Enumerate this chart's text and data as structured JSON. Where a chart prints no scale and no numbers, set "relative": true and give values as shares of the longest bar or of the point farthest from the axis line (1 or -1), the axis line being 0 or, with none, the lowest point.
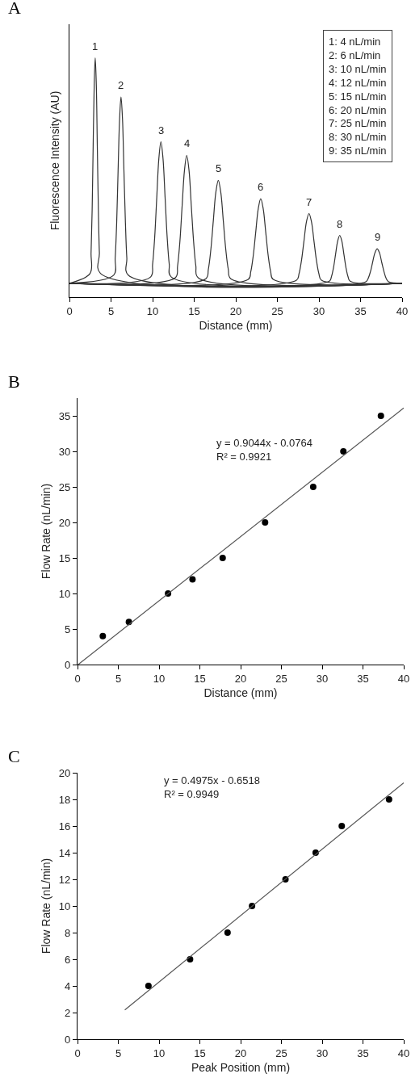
{
  "chart_data": [
    {
      "type": "line",
      "title": "A",
      "xlabel": "Distance (mm)",
      "ylabel": "Fluorescence Intensity (AU)",
      "relative": true,
      "xlim": [
        0,
        40
      ],
      "xticks": [
        0,
        5,
        10,
        15,
        20,
        25,
        30,
        35,
        40
      ],
      "grid": false,
      "marker": "none",
      "line_style": "solid",
      "series": [
        {
          "color": "#333333",
          "x": [
            0,
            2.48,
            2.6,
            2.73,
            2.85,
            2.98,
            3.1,
            3.23,
            3.35,
            3.48,
            3.6,
            3.73,
            40
          ],
          "values": [
            0.058,
            0.099,
            0.185,
            0.364,
            0.63,
            0.889,
            1.0,
            0.889,
            0.63,
            0.364,
            0.185,
            0.099,
            0.058
          ]
        },
        {
          "color": "#333333",
          "x": [
            0,
            5.33,
            5.5,
            5.68,
            5.85,
            6.03,
            6.2,
            6.38,
            6.55,
            6.73,
            6.9,
            7.08,
            40
          ],
          "values": [
            0.058,
            0.092,
            0.163,
            0.311,
            0.53,
            0.744,
            0.836,
            0.744,
            0.53,
            0.311,
            0.163,
            0.092,
            0.058
          ]
        },
        {
          "color": "#333333",
          "x": [
            0,
            9.75,
            10,
            10.25,
            10.5,
            10.75,
            11,
            11.25,
            11.5,
            11.75,
            12,
            12.25,
            40
          ],
          "values": [
            0.058,
            0.084,
            0.138,
            0.25,
            0.417,
            0.579,
            0.649,
            0.579,
            0.417,
            0.25,
            0.138,
            0.084,
            0.058
          ]
        },
        {
          "color": "#333333",
          "x": [
            0,
            12.73,
            13,
            13.28,
            13.55,
            13.83,
            14.1,
            14.38,
            14.65,
            14.93,
            15.2,
            15.48,
            40
          ],
          "values": [
            0.058,
            0.081,
            0.13,
            0.232,
            0.382,
            0.529,
            0.592,
            0.529,
            0.382,
            0.232,
            0.13,
            0.081,
            0.058
          ]
        },
        {
          "color": "#333333",
          "x": [
            0,
            16.4,
            16.7,
            17,
            17.3,
            17.6,
            17.9,
            18.2,
            18.5,
            18.8,
            19.1,
            19.4,
            40
          ],
          "values": [
            0.058,
            0.077,
            0.116,
            0.198,
            0.319,
            0.437,
            0.488,
            0.437,
            0.319,
            0.198,
            0.116,
            0.077,
            0.058
          ]
        },
        {
          "color": "#333333",
          "x": [
            0,
            21.5,
            21.8,
            22.1,
            22.4,
            22.7,
            23,
            23.3,
            23.6,
            23.9,
            24.2,
            24.5,
            40
          ],
          "values": [
            0.058,
            0.074,
            0.106,
            0.173,
            0.272,
            0.369,
            0.411,
            0.369,
            0.272,
            0.173,
            0.106,
            0.074,
            0.058
          ]
        },
        {
          "color": "#333333",
          "x": [
            0,
            27.3,
            27.6,
            27.9,
            28.2,
            28.5,
            28.8,
            29.1,
            29.4,
            29.7,
            30,
            30.3,
            40
          ],
          "values": [
            0.058,
            0.071,
            0.097,
            0.153,
            0.235,
            0.315,
            0.349,
            0.315,
            0.235,
            0.153,
            0.097,
            0.071,
            0.058
          ]
        },
        {
          "color": "#333333",
          "x": [
            0,
            31.25,
            31.5,
            31.75,
            32,
            32.25,
            32.5,
            32.75,
            33,
            33.25,
            33.5,
            33.75,
            40
          ],
          "values": [
            0.058,
            0.067,
            0.085,
            0.123,
            0.179,
            0.234,
            0.258,
            0.234,
            0.179,
            0.123,
            0.085,
            0.067,
            0.058
          ]
        },
        {
          "color": "#333333",
          "x": [
            0,
            35.63,
            35.9,
            36.18,
            36.45,
            36.73,
            37,
            37.28,
            37.55,
            37.83,
            38.1,
            38.38,
            40
          ],
          "values": [
            0.058,
            0.064,
            0.077,
            0.105,
            0.145,
            0.185,
            0.202,
            0.185,
            0.145,
            0.105,
            0.077,
            0.064,
            0.058
          ]
        }
      ],
      "annotations": [
        {
          "text": "1",
          "x": 3.1,
          "y": 1.0
        },
        {
          "text": "2",
          "x": 6.2,
          "y": 0.836
        },
        {
          "text": "3",
          "x": 11,
          "y": 0.649
        },
        {
          "text": "4",
          "x": 14.1,
          "y": 0.592
        },
        {
          "text": "5",
          "x": 17.9,
          "y": 0.488
        },
        {
          "text": "6",
          "x": 23,
          "y": 0.411
        },
        {
          "text": "7",
          "x": 28.8,
          "y": 0.349
        },
        {
          "text": "8",
          "x": 32.5,
          "y": 0.258
        },
        {
          "text": "9",
          "x": 37,
          "y": 0.202
        },
        "1: 4 nL/min",
        "2: 6 nL/min",
        "3: 10 nL/min",
        "4: 12 nL/min",
        "5: 15 nL/min",
        "6: 20 nL/min",
        "7: 25 nL/min",
        "8: 30 nL/min",
        "9: 35 nL/min"
      ]
    },
    {
      "type": "scatter",
      "title": "B",
      "xlabel": "Distance (mm)",
      "ylabel": "Flow Rate (nL/min)",
      "xlim": [
        0,
        40
      ],
      "xticks": [
        0,
        5,
        10,
        15,
        20,
        25,
        30,
        35,
        40
      ],
      "ylim": [
        0,
        37.5
      ],
      "yticks": [
        0,
        5,
        10,
        15,
        20,
        25,
        30,
        35
      ],
      "grid": false,
      "series": [
        {
          "type": "scatter",
          "marker": "circle",
          "color": "#000000",
          "x": [
            3.1,
            6.3,
            11.1,
            14.1,
            17.8,
            23.0,
            28.9,
            32.6,
            37.2
          ],
          "values": [
            4,
            6,
            10,
            12,
            15,
            20,
            25,
            30,
            35
          ]
        },
        {
          "type": "line",
          "marker": "none",
          "line_style": "solid",
          "color": "#555555",
          "x": [
            0.08,
            40
          ],
          "values": [
            0,
            36.1
          ]
        }
      ],
      "annotations": [
        "y = 0.9044x - 0.0764",
        "R² = 0.9921"
      ]
    },
    {
      "type": "scatter",
      "title": "C",
      "xlabel": "Peak Position (mm)",
      "ylabel": "Flow Rate (nL/min)",
      "xlim": [
        0,
        40
      ],
      "xticks": [
        0,
        5,
        10,
        15,
        20,
        25,
        30,
        35,
        40
      ],
      "ylim": [
        0,
        20
      ],
      "yticks": [
        0,
        2,
        4,
        6,
        8,
        10,
        12,
        14,
        16,
        18,
        20
      ],
      "grid": false,
      "series": [
        {
          "type": "scatter",
          "marker": "circle",
          "color": "#000000",
          "x": [
            8.7,
            13.8,
            18.4,
            21.4,
            25.5,
            29.2,
            32.4,
            38.2
          ],
          "values": [
            4,
            6,
            8,
            10,
            12,
            14,
            16,
            18
          ]
        },
        {
          "type": "line",
          "marker": "none",
          "line_style": "solid",
          "color": "#555555",
          "x": [
            5.8,
            40
          ],
          "values": [
            2.2,
            19.25
          ]
        }
      ],
      "annotations": [
        "y = 0.4975x - 0.6518",
        "R² = 0.9949"
      ]
    }
  ]
}
